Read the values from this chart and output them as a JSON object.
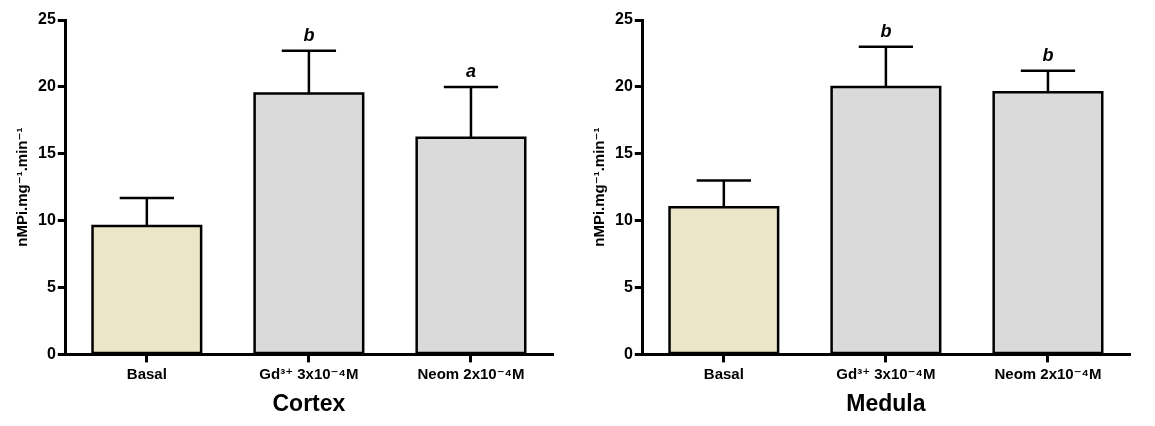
{
  "chart_data": [
    {
      "type": "bar",
      "xlabel": "Cortex",
      "ylabel": "nMPi.mg⁻¹.min⁻¹",
      "categories": [
        "Basal",
        "Gd³⁺ 3x10⁻⁴M",
        "Neom 2x10⁻⁴M"
      ],
      "values": [
        9.6,
        19.5,
        16.2
      ],
      "colors": [
        "#ece6c8",
        "#dadada",
        "#dadada"
      ],
      "errors": [
        [
          9.6,
          11.7
        ],
        [
          19.5,
          22.7
        ],
        [
          16.2,
          20.0
        ]
      ],
      "ylim": [
        0,
        25
      ],
      "yticks": [
        0,
        5,
        10,
        15,
        20,
        25
      ],
      "grid": false,
      "legend": false,
      "annotations": [
        {
          "text": "b",
          "x": "Gd³⁺ 3x10⁻⁴M",
          "y": 22.7
        },
        {
          "text": "a",
          "x": "Neom 2x10⁻⁴M",
          "y": 20.0
        }
      ]
    },
    {
      "type": "bar",
      "xlabel": "Medula",
      "ylabel": "nMPi.mg⁻¹.min⁻¹",
      "categories": [
        "Basal",
        "Gd³⁺ 3x10⁻⁴M",
        "Neom 2x10⁻⁴M"
      ],
      "values": [
        11.0,
        20.0,
        19.6
      ],
      "colors": [
        "#ece6c8",
        "#dadada",
        "#dadada"
      ],
      "errors": [
        [
          11.0,
          13.0
        ],
        [
          20.0,
          23.0
        ],
        [
          19.6,
          21.2
        ]
      ],
      "ylim": [
        0,
        25
      ],
      "yticks": [
        0,
        5,
        10,
        15,
        20,
        25
      ],
      "grid": false,
      "legend": false,
      "annotations": [
        {
          "text": "b",
          "x": "Gd³⁺ 3x10⁻⁴M",
          "y": 23.0
        },
        {
          "text": "b",
          "x": "Neom 2x10⁻⁴M",
          "y": 21.2
        }
      ]
    }
  ]
}
